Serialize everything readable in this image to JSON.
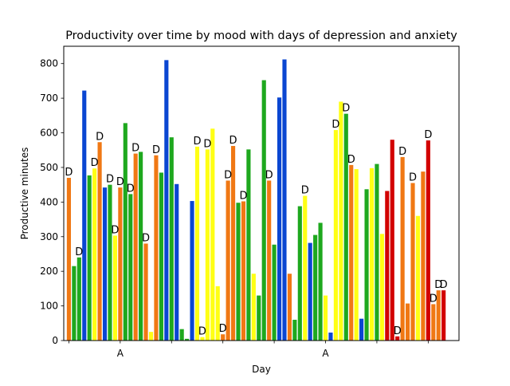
{
  "chart_data": {
    "type": "bar",
    "title": "Productivity over time by mood with days of depression and anxiety",
    "xlabel": "Day",
    "ylabel": "Productive minutes",
    "ylim": [
      0,
      850
    ],
    "xlim": [
      -1,
      76
    ],
    "yticks": [
      0,
      100,
      200,
      300,
      400,
      500,
      600,
      700,
      800
    ],
    "xticks": [
      0,
      10,
      20,
      30,
      40,
      50,
      60,
      70
    ],
    "xtick_labels": [
      {
        "x": 10,
        "label": "A"
      },
      {
        "x": 50,
        "label": "A"
      }
    ],
    "grid": false,
    "legend": "none",
    "mood_colors": {
      "orange": "#f07814",
      "green": "#1ea81e",
      "blue": "#0a46d2",
      "yellow": "#ffff14",
      "red": "#d20000"
    },
    "annotation_text": "D",
    "bars": [
      {
        "x": 0,
        "value": 470,
        "color": "orange",
        "mark": "D"
      },
      {
        "x": 1,
        "value": 215,
        "color": "green",
        "mark": ""
      },
      {
        "x": 2,
        "value": 240,
        "color": "green",
        "mark": "D"
      },
      {
        "x": 3,
        "value": 722,
        "color": "blue",
        "mark": ""
      },
      {
        "x": 4,
        "value": 477,
        "color": "green",
        "mark": ""
      },
      {
        "x": 5,
        "value": 497,
        "color": "yellow",
        "mark": "D"
      },
      {
        "x": 6,
        "value": 573,
        "color": "orange",
        "mark": "D"
      },
      {
        "x": 7,
        "value": 442,
        "color": "blue",
        "mark": ""
      },
      {
        "x": 8,
        "value": 450,
        "color": "green",
        "mark": "D"
      },
      {
        "x": 9,
        "value": 303,
        "color": "yellow",
        "mark": "D"
      },
      {
        "x": 10,
        "value": 442,
        "color": "orange",
        "mark": "D"
      },
      {
        "x": 11,
        "value": 628,
        "color": "green",
        "mark": ""
      },
      {
        "x": 12,
        "value": 423,
        "color": "green",
        "mark": "D"
      },
      {
        "x": 13,
        "value": 540,
        "color": "orange",
        "mark": "D"
      },
      {
        "x": 14,
        "value": 545,
        "color": "green",
        "mark": ""
      },
      {
        "x": 15,
        "value": 280,
        "color": "orange",
        "mark": "D"
      },
      {
        "x": 16,
        "value": 25,
        "color": "yellow",
        "mark": ""
      },
      {
        "x": 17,
        "value": 535,
        "color": "orange",
        "mark": "D"
      },
      {
        "x": 18,
        "value": 485,
        "color": "green",
        "mark": ""
      },
      {
        "x": 19,
        "value": 810,
        "color": "blue",
        "mark": ""
      },
      {
        "x": 20,
        "value": 587,
        "color": "green",
        "mark": ""
      },
      {
        "x": 21,
        "value": 452,
        "color": "blue",
        "mark": ""
      },
      {
        "x": 22,
        "value": 33,
        "color": "green",
        "mark": ""
      },
      {
        "x": 23,
        "value": 5,
        "color": "green",
        "mark": ""
      },
      {
        "x": 24,
        "value": 403,
        "color": "blue",
        "mark": ""
      },
      {
        "x": 25,
        "value": 560,
        "color": "yellow",
        "mark": "D"
      },
      {
        "x": 26,
        "value": 10,
        "color": "yellow",
        "mark": "D"
      },
      {
        "x": 27,
        "value": 552,
        "color": "yellow",
        "mark": "D"
      },
      {
        "x": 28,
        "value": 612,
        "color": "yellow",
        "mark": ""
      },
      {
        "x": 29,
        "value": 157,
        "color": "yellow",
        "mark": ""
      },
      {
        "x": 30,
        "value": 18,
        "color": "orange",
        "mark": "D"
      },
      {
        "x": 31,
        "value": 462,
        "color": "orange",
        "mark": "D"
      },
      {
        "x": 32,
        "value": 562,
        "color": "orange",
        "mark": "D"
      },
      {
        "x": 33,
        "value": 398,
        "color": "green",
        "mark": ""
      },
      {
        "x": 34,
        "value": 402,
        "color": "orange",
        "mark": "D"
      },
      {
        "x": 35,
        "value": 552,
        "color": "green",
        "mark": ""
      },
      {
        "x": 36,
        "value": 193,
        "color": "yellow",
        "mark": ""
      },
      {
        "x": 37,
        "value": 130,
        "color": "green",
        "mark": ""
      },
      {
        "x": 38,
        "value": 752,
        "color": "green",
        "mark": ""
      },
      {
        "x": 39,
        "value": 462,
        "color": "orange",
        "mark": "D"
      },
      {
        "x": 40,
        "value": 277,
        "color": "green",
        "mark": ""
      },
      {
        "x": 41,
        "value": 702,
        "color": "blue",
        "mark": ""
      },
      {
        "x": 42,
        "value": 812,
        "color": "blue",
        "mark": ""
      },
      {
        "x": 43,
        "value": 193,
        "color": "orange",
        "mark": ""
      },
      {
        "x": 44,
        "value": 60,
        "color": "green",
        "mark": ""
      },
      {
        "x": 45,
        "value": 388,
        "color": "green",
        "mark": ""
      },
      {
        "x": 46,
        "value": 418,
        "color": "yellow",
        "mark": "D"
      },
      {
        "x": 47,
        "value": 282,
        "color": "blue",
        "mark": ""
      },
      {
        "x": 48,
        "value": 305,
        "color": "green",
        "mark": ""
      },
      {
        "x": 49,
        "value": 340,
        "color": "green",
        "mark": ""
      },
      {
        "x": 50,
        "value": 130,
        "color": "yellow",
        "mark": ""
      },
      {
        "x": 51,
        "value": 23,
        "color": "blue",
        "mark": ""
      },
      {
        "x": 52,
        "value": 608,
        "color": "yellow",
        "mark": "D"
      },
      {
        "x": 53,
        "value": 690,
        "color": "yellow",
        "mark": ""
      },
      {
        "x": 54,
        "value": 655,
        "color": "green",
        "mark": "D"
      },
      {
        "x": 55,
        "value": 507,
        "color": "orange",
        "mark": "D"
      },
      {
        "x": 56,
        "value": 495,
        "color": "yellow",
        "mark": ""
      },
      {
        "x": 57,
        "value": 63,
        "color": "blue",
        "mark": ""
      },
      {
        "x": 58,
        "value": 437,
        "color": "green",
        "mark": ""
      },
      {
        "x": 59,
        "value": 498,
        "color": "yellow",
        "mark": ""
      },
      {
        "x": 60,
        "value": 510,
        "color": "green",
        "mark": ""
      },
      {
        "x": 61,
        "value": 308,
        "color": "yellow",
        "mark": ""
      },
      {
        "x": 62,
        "value": 432,
        "color": "red",
        "mark": ""
      },
      {
        "x": 63,
        "value": 580,
        "color": "red",
        "mark": ""
      },
      {
        "x": 64,
        "value": 12,
        "color": "red",
        "mark": "D"
      },
      {
        "x": 65,
        "value": 530,
        "color": "orange",
        "mark": "D"
      },
      {
        "x": 66,
        "value": 107,
        "color": "orange",
        "mark": ""
      },
      {
        "x": 67,
        "value": 455,
        "color": "orange",
        "mark": "D"
      },
      {
        "x": 68,
        "value": 360,
        "color": "yellow",
        "mark": ""
      },
      {
        "x": 69,
        "value": 488,
        "color": "orange",
        "mark": ""
      },
      {
        "x": 70,
        "value": 578,
        "color": "red",
        "mark": "D"
      },
      {
        "x": 71,
        "value": 105,
        "color": "orange",
        "mark": "D"
      },
      {
        "x": 72,
        "value": 145,
        "color": "orange",
        "mark": "D"
      },
      {
        "x": 73,
        "value": 145,
        "color": "red",
        "mark": "D"
      }
    ]
  }
}
